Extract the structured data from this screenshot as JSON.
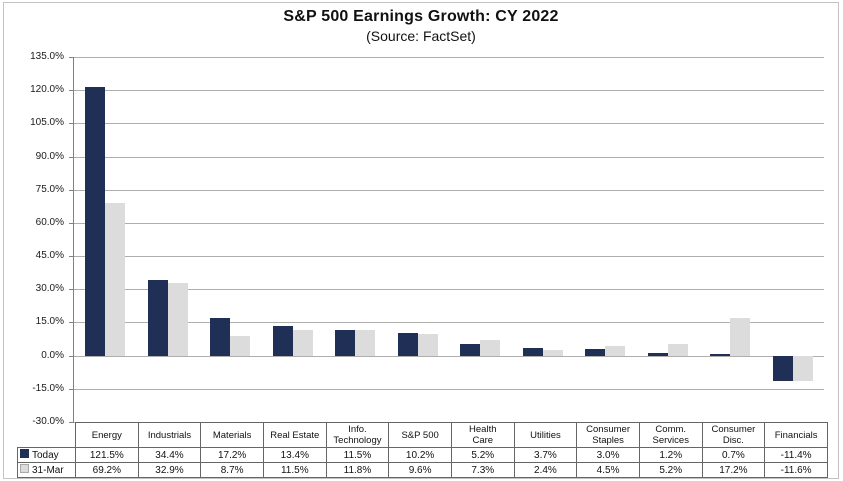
{
  "chart_data": {
    "type": "bar",
    "title": "S&P 500 Earnings Growth: CY 2022",
    "subtitle": "(Source: FactSet)",
    "categories": [
      "Energy",
      "Industrials",
      "Materials",
      "Real Estate",
      "Info.\nTechnology",
      "S&P 500",
      "Health\nCare",
      "Utilities",
      "Consumer\nStaples",
      "Comm.\nServices",
      "Consumer\nDisc.",
      "Financials"
    ],
    "series": [
      {
        "name": "Today",
        "color": "#1f2f55",
        "values": [
          121.5,
          34.4,
          17.2,
          13.4,
          11.5,
          10.2,
          5.2,
          3.7,
          3.0,
          1.2,
          0.7,
          -11.4
        ]
      },
      {
        "name": "31-Mar",
        "color": "#dcdcdc",
        "values": [
          69.2,
          32.9,
          8.7,
          11.5,
          11.8,
          9.6,
          7.3,
          2.4,
          4.5,
          5.2,
          17.2,
          -11.6
        ]
      }
    ],
    "ylim": [
      -30,
      135
    ],
    "ytick_step": 15,
    "ytick_format": "percent_1dp",
    "value_format": "percent_1dp",
    "grid": true,
    "gridline_color": "#aeaeae",
    "axis_color": "#808080",
    "legend_position": "table-left",
    "data_table_shown": true
  }
}
